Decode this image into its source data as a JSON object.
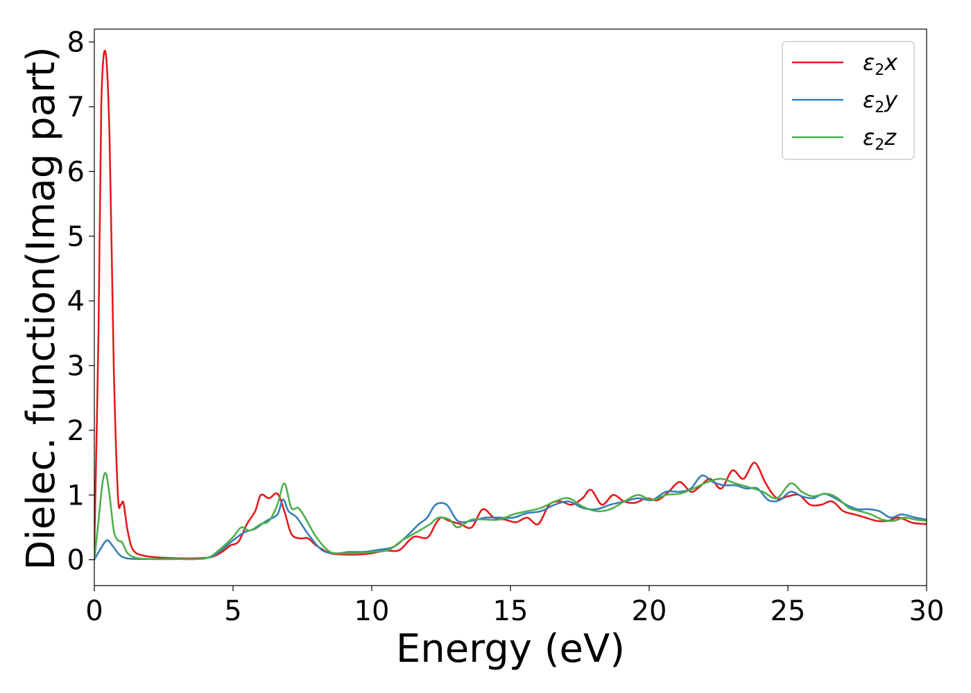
{
  "chart_data": {
    "type": "line",
    "title": "",
    "xlabel": "Energy (eV)",
    "ylabel": "Dielec. function(Imag part)",
    "xlim": [
      0,
      30
    ],
    "ylim": [
      -0.4,
      8.2
    ],
    "xticks": [
      0,
      5,
      10,
      15,
      20,
      25,
      30
    ],
    "yticks": [
      0,
      1,
      2,
      3,
      4,
      5,
      6,
      7,
      8
    ],
    "grid": false,
    "legend_position": "top-right",
    "series": [
      {
        "name": "ε2x",
        "legend": {
          "base": "ε",
          "sub": "2",
          "suffix": "x"
        },
        "color": "#e41a1c",
        "points": [
          [
            0,
            0.2
          ],
          [
            0.15,
            3.5
          ],
          [
            0.25,
            7.0
          ],
          [
            0.4,
            7.85
          ],
          [
            0.55,
            6.5
          ],
          [
            0.7,
            3.0
          ],
          [
            0.85,
            1.0
          ],
          [
            0.95,
            0.85
          ],
          [
            1.05,
            0.88
          ],
          [
            1.2,
            0.45
          ],
          [
            1.4,
            0.15
          ],
          [
            1.8,
            0.06
          ],
          [
            2.5,
            0.03
          ],
          [
            3.5,
            0.02
          ],
          [
            4.2,
            0.04
          ],
          [
            4.6,
            0.12
          ],
          [
            4.9,
            0.22
          ],
          [
            5.2,
            0.28
          ],
          [
            5.5,
            0.55
          ],
          [
            5.8,
            0.75
          ],
          [
            6.0,
            1.0
          ],
          [
            6.3,
            0.95
          ],
          [
            6.6,
            1.02
          ],
          [
            6.85,
            0.75
          ],
          [
            7.1,
            0.4
          ],
          [
            7.4,
            0.33
          ],
          [
            7.7,
            0.33
          ],
          [
            8.0,
            0.22
          ],
          [
            8.5,
            0.1
          ],
          [
            9.0,
            0.08
          ],
          [
            9.5,
            0.08
          ],
          [
            10,
            0.1
          ],
          [
            10.5,
            0.14
          ],
          [
            11,
            0.15
          ],
          [
            11.5,
            0.35
          ],
          [
            12,
            0.34
          ],
          [
            12.3,
            0.55
          ],
          [
            12.5,
            0.65
          ],
          [
            12.8,
            0.6
          ],
          [
            13.2,
            0.55
          ],
          [
            13.6,
            0.5
          ],
          [
            14.0,
            0.78
          ],
          [
            14.4,
            0.65
          ],
          [
            14.8,
            0.62
          ],
          [
            15.2,
            0.58
          ],
          [
            15.6,
            0.65
          ],
          [
            16.0,
            0.55
          ],
          [
            16.4,
            0.85
          ],
          [
            16.8,
            0.9
          ],
          [
            17.2,
            0.85
          ],
          [
            17.6,
            0.95
          ],
          [
            17.9,
            1.08
          ],
          [
            18.3,
            0.85
          ],
          [
            18.7,
            1.0
          ],
          [
            19.1,
            0.9
          ],
          [
            19.5,
            0.88
          ],
          [
            19.9,
            0.95
          ],
          [
            20.3,
            0.92
          ],
          [
            20.7,
            1.05
          ],
          [
            21.1,
            1.2
          ],
          [
            21.5,
            1.05
          ],
          [
            21.8,
            1.12
          ],
          [
            22.2,
            1.25
          ],
          [
            22.6,
            1.1
          ],
          [
            23.0,
            1.38
          ],
          [
            23.4,
            1.25
          ],
          [
            23.8,
            1.5
          ],
          [
            24.2,
            1.18
          ],
          [
            24.6,
            0.95
          ],
          [
            25.0,
            0.98
          ],
          [
            25.4,
            1.0
          ],
          [
            25.8,
            0.85
          ],
          [
            26.2,
            0.85
          ],
          [
            26.6,
            0.9
          ],
          [
            27.0,
            0.75
          ],
          [
            27.4,
            0.7
          ],
          [
            27.8,
            0.65
          ],
          [
            28.2,
            0.6
          ],
          [
            28.6,
            0.6
          ],
          [
            29.0,
            0.65
          ],
          [
            29.5,
            0.57
          ],
          [
            30,
            0.55
          ]
        ]
      },
      {
        "name": "ε2y",
        "legend": {
          "base": "ε",
          "sub": "2",
          "suffix": "y"
        },
        "color": "#377eb8",
        "points": [
          [
            0,
            0.0
          ],
          [
            0.2,
            0.15
          ],
          [
            0.45,
            0.3
          ],
          [
            0.65,
            0.22
          ],
          [
            0.9,
            0.08
          ],
          [
            1.2,
            0.02
          ],
          [
            2,
            0.01
          ],
          [
            3,
            0.01
          ],
          [
            4,
            0.02
          ],
          [
            4.5,
            0.12
          ],
          [
            5.0,
            0.3
          ],
          [
            5.4,
            0.42
          ],
          [
            5.8,
            0.48
          ],
          [
            6.2,
            0.6
          ],
          [
            6.6,
            0.7
          ],
          [
            6.8,
            0.93
          ],
          [
            7.0,
            0.75
          ],
          [
            7.3,
            0.65
          ],
          [
            7.7,
            0.4
          ],
          [
            8.2,
            0.15
          ],
          [
            8.7,
            0.1
          ],
          [
            9.2,
            0.12
          ],
          [
            9.7,
            0.12
          ],
          [
            10.2,
            0.15
          ],
          [
            10.8,
            0.2
          ],
          [
            11.3,
            0.38
          ],
          [
            11.7,
            0.55
          ],
          [
            12.0,
            0.65
          ],
          [
            12.3,
            0.85
          ],
          [
            12.7,
            0.85
          ],
          [
            13.1,
            0.6
          ],
          [
            13.6,
            0.6
          ],
          [
            14.1,
            0.65
          ],
          [
            14.6,
            0.65
          ],
          [
            15.1,
            0.65
          ],
          [
            15.6,
            0.72
          ],
          [
            16.1,
            0.75
          ],
          [
            16.6,
            0.85
          ],
          [
            17.1,
            0.9
          ],
          [
            17.6,
            0.8
          ],
          [
            18.1,
            0.78
          ],
          [
            18.6,
            0.85
          ],
          [
            19.1,
            0.9
          ],
          [
            19.6,
            0.95
          ],
          [
            20.1,
            0.92
          ],
          [
            20.6,
            1.05
          ],
          [
            21.1,
            1.05
          ],
          [
            21.5,
            1.1
          ],
          [
            21.9,
            1.3
          ],
          [
            22.3,
            1.2
          ],
          [
            22.7,
            1.15
          ],
          [
            23.1,
            1.15
          ],
          [
            23.5,
            1.1
          ],
          [
            23.9,
            1.1
          ],
          [
            24.3,
            0.92
          ],
          [
            24.7,
            0.92
          ],
          [
            25.1,
            1.05
          ],
          [
            25.5,
            0.98
          ],
          [
            25.9,
            0.95
          ],
          [
            26.3,
            1.02
          ],
          [
            26.7,
            0.95
          ],
          [
            27.1,
            0.85
          ],
          [
            27.5,
            0.78
          ],
          [
            27.9,
            0.78
          ],
          [
            28.3,
            0.75
          ],
          [
            28.7,
            0.65
          ],
          [
            29.1,
            0.7
          ],
          [
            29.6,
            0.65
          ],
          [
            30,
            0.62
          ]
        ]
      },
      {
        "name": "ε2z",
        "legend": {
          "base": "ε",
          "sub": "2",
          "suffix": "z"
        },
        "color": "#4daf4a",
        "points": [
          [
            0,
            0.0
          ],
          [
            0.15,
            0.6
          ],
          [
            0.3,
            1.2
          ],
          [
            0.42,
            1.33
          ],
          [
            0.55,
            1.0
          ],
          [
            0.7,
            0.45
          ],
          [
            0.85,
            0.3
          ],
          [
            1.0,
            0.27
          ],
          [
            1.2,
            0.1
          ],
          [
            1.5,
            0.03
          ],
          [
            2,
            0.01
          ],
          [
            3,
            0.01
          ],
          [
            4,
            0.02
          ],
          [
            4.5,
            0.15
          ],
          [
            5.0,
            0.35
          ],
          [
            5.3,
            0.5
          ],
          [
            5.6,
            0.45
          ],
          [
            6.0,
            0.55
          ],
          [
            6.3,
            0.6
          ],
          [
            6.6,
            0.85
          ],
          [
            6.85,
            1.18
          ],
          [
            7.1,
            0.8
          ],
          [
            7.35,
            0.8
          ],
          [
            7.6,
            0.65
          ],
          [
            8.0,
            0.35
          ],
          [
            8.5,
            0.12
          ],
          [
            9.0,
            0.1
          ],
          [
            9.5,
            0.1
          ],
          [
            10,
            0.12
          ],
          [
            10.6,
            0.15
          ],
          [
            11.1,
            0.3
          ],
          [
            11.6,
            0.42
          ],
          [
            12.1,
            0.55
          ],
          [
            12.4,
            0.65
          ],
          [
            12.8,
            0.62
          ],
          [
            13.1,
            0.5
          ],
          [
            13.6,
            0.62
          ],
          [
            14.1,
            0.62
          ],
          [
            14.6,
            0.62
          ],
          [
            15.1,
            0.7
          ],
          [
            15.6,
            0.75
          ],
          [
            16.1,
            0.8
          ],
          [
            16.6,
            0.9
          ],
          [
            17.1,
            0.95
          ],
          [
            17.6,
            0.82
          ],
          [
            18.1,
            0.75
          ],
          [
            18.6,
            0.78
          ],
          [
            19.1,
            0.9
          ],
          [
            19.6,
            1.0
          ],
          [
            20.1,
            0.92
          ],
          [
            20.6,
            1.0
          ],
          [
            21.1,
            1.02
          ],
          [
            21.6,
            1.1
          ],
          [
            22.1,
            1.2
          ],
          [
            22.6,
            1.25
          ],
          [
            23.1,
            1.18
          ],
          [
            23.6,
            1.12
          ],
          [
            24.1,
            1.05
          ],
          [
            24.6,
            0.95
          ],
          [
            25.1,
            1.18
          ],
          [
            25.5,
            1.05
          ],
          [
            25.9,
            0.98
          ],
          [
            26.4,
            1.02
          ],
          [
            26.8,
            0.95
          ],
          [
            27.2,
            0.8
          ],
          [
            27.6,
            0.75
          ],
          [
            28.0,
            0.7
          ],
          [
            28.4,
            0.62
          ],
          [
            28.8,
            0.6
          ],
          [
            29.2,
            0.65
          ],
          [
            29.6,
            0.62
          ],
          [
            30,
            0.6
          ]
        ]
      }
    ]
  }
}
